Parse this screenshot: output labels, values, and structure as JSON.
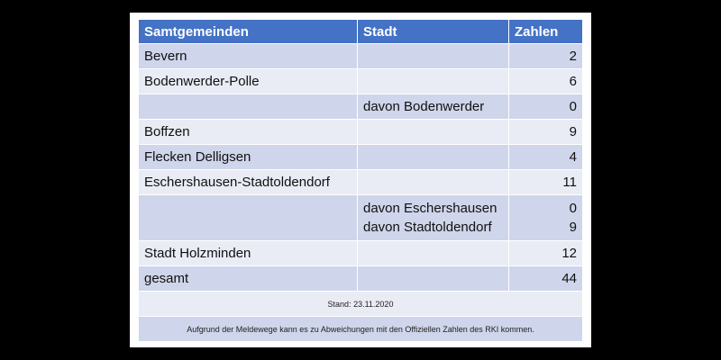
{
  "headers": [
    "Samtgemeinden",
    "Stadt",
    "Zahlen"
  ],
  "rows": [
    {
      "gemeinde": "Bevern",
      "stadt": "",
      "zahl": "2"
    },
    {
      "gemeinde": "Bodenwerder-Polle",
      "stadt": "",
      "zahl": "6"
    },
    {
      "gemeinde": "",
      "stadt": "davon Bodenwerder",
      "zahl": "0"
    },
    {
      "gemeinde": "Boffzen",
      "stadt": "",
      "zahl": "9"
    },
    {
      "gemeinde": "Flecken Delligsen",
      "stadt": "",
      "zahl": "4"
    },
    {
      "gemeinde": "Eschershausen-Stadtoldendorf",
      "stadt": "",
      "zahl": "11"
    },
    {
      "gemeinde": "",
      "stadt": [
        "davon Eschershausen",
        "davon Stadtoldendorf"
      ],
      "zahl": [
        "0",
        "9"
      ]
    },
    {
      "gemeinde": "Stadt Holzminden",
      "stadt": "",
      "zahl": "12"
    },
    {
      "gemeinde": "gesamt",
      "stadt": "",
      "zahl": "44"
    }
  ],
  "stand": "Stand: 23.11.2020",
  "hinweis": "Aufgrund der Meldewege  kann es zu Abweichungen  mit den Offiziellen Zahlen des RKI kommen."
}
